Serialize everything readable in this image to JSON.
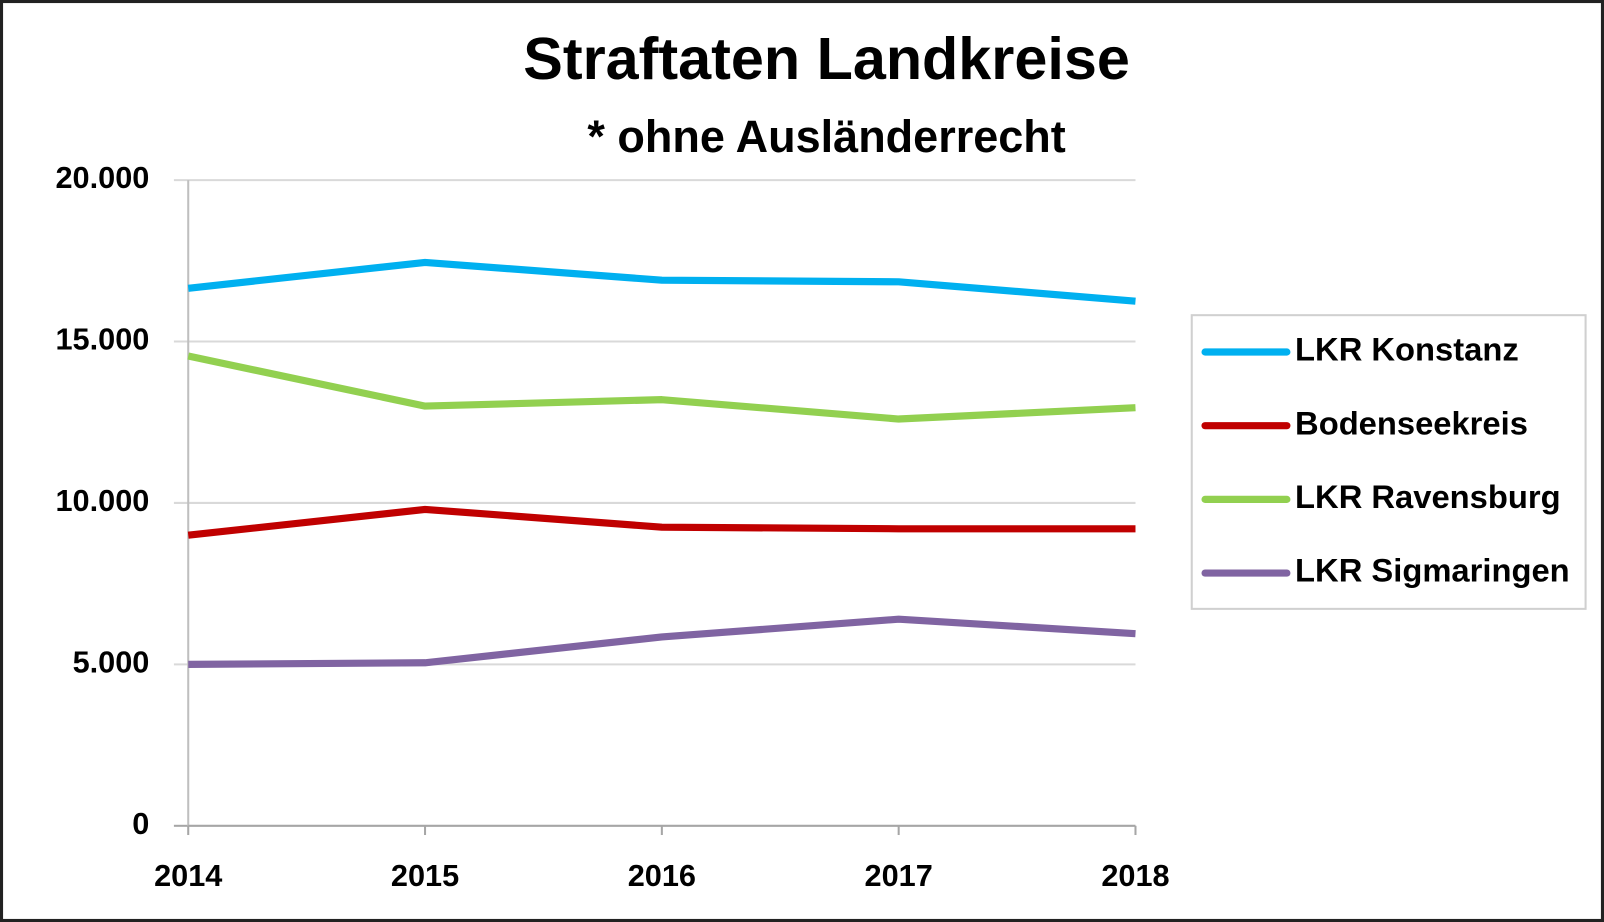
{
  "chart_data": {
    "type": "line",
    "title": "Straftaten Landkreise",
    "subtitle": "* ohne Ausländerrecht",
    "categories": [
      "2014",
      "2015",
      "2016",
      "2017",
      "2018"
    ],
    "series": [
      {
        "name": "LKR Konstanz",
        "color": "#00b0f0",
        "values": [
          16650,
          17450,
          16900,
          16850,
          16250
        ]
      },
      {
        "name": "Bodenseekreis",
        "color": "#c00000",
        "values": [
          9000,
          9800,
          9250,
          9200,
          9200
        ]
      },
      {
        "name": "LKR Ravensburg",
        "color": "#92d050",
        "values": [
          14550,
          13000,
          13200,
          12600,
          12950
        ]
      },
      {
        "name": "LKR Sigmaringen",
        "color": "#8064a2",
        "values": [
          5000,
          5050,
          5850,
          6400,
          5950
        ]
      }
    ],
    "ylim": [
      0,
      20000
    ],
    "yticks": [
      0,
      {
        "value": 5000,
        "label": "5.000"
      },
      {
        "value": 10000,
        "label": "10.000"
      },
      {
        "value": 15000,
        "label": "15.000"
      },
      {
        "value": 20000,
        "label": "20.000"
      }
    ],
    "grid": true,
    "legend": "right"
  }
}
